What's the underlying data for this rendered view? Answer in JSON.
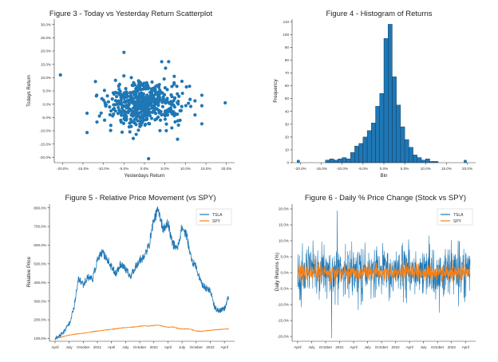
{
  "colors": {
    "primary": "#1f77b4",
    "secondary": "#ff7f0e",
    "bar_edge": "#0b2f4f"
  },
  "chart_data": [
    {
      "type": "scatter",
      "title": "Figure 3 - Today vs Yesterday Return Scatterplot",
      "xlabel": "Yesterdays Return",
      "ylabel": "Todays Return",
      "xlim": [
        -0.22,
        0.22
      ],
      "ylim": [
        -0.22,
        0.32
      ],
      "x_ticks": [
        "-20.0%",
        "-15.0%",
        "-10.0%",
        "-5.0%",
        "0.0%",
        "5.0%",
        "10.0%",
        "15.0%",
        "20.0%"
      ],
      "x_tick_values": [
        -0.2,
        -0.15,
        -0.1,
        -0.05,
        0,
        0.05,
        0.1,
        0.15,
        0.2
      ],
      "y_ticks": [
        "-20.0%",
        "-15.0%",
        "-10.0%",
        "-5.0%",
        "0.0%",
        "5.0%",
        "10.0%",
        "15.0%",
        "20.0%",
        "25.0%",
        "30.0%"
      ],
      "y_tick_values": [
        -0.2,
        -0.15,
        -0.1,
        -0.05,
        0,
        0.05,
        0.1,
        0.15,
        0.2,
        0.25,
        0.3
      ],
      "outliers": [
        {
          "x": -0.205,
          "y": 0.11
        },
        {
          "x": -0.05,
          "y": 0.195
        },
        {
          "x": 0.197,
          "y": 0.005
        },
        {
          "x": 0.01,
          "y": -0.205
        }
      ],
      "cluster": {
        "count": 560,
        "x_spread": 0.04,
        "y_spread": 0.04
      }
    },
    {
      "type": "bar",
      "title": "Figure 4 - Histogram of Returns",
      "xlabel": "Bin",
      "ylabel": "Frequency",
      "xlim": [
        -0.22,
        0.22
      ],
      "ylim": [
        0,
        112
      ],
      "x_ticks": [
        "-20.0%",
        "-15.0%",
        "-10.0%",
        "-5.0%",
        "0.0%",
        "5.0%",
        "10.0%",
        "15.0%",
        "20.0%"
      ],
      "x_tick_values": [
        -0.2,
        -0.15,
        -0.1,
        -0.05,
        0,
        0.05,
        0.1,
        0.15,
        0.2
      ],
      "y_ticks": [
        "0",
        "10",
        "20",
        "30",
        "40",
        "50",
        "60",
        "70",
        "80",
        "90",
        "100",
        "110"
      ],
      "y_tick_values": [
        0,
        10,
        20,
        30,
        40,
        50,
        60,
        70,
        80,
        90,
        100,
        110
      ],
      "bin_width": 0.01,
      "bin_starts": [
        -0.14,
        -0.13,
        -0.12,
        -0.11,
        -0.1,
        -0.09,
        -0.08,
        -0.07,
        -0.06,
        -0.05,
        -0.04,
        -0.03,
        -0.02,
        -0.01,
        0.0,
        0.01,
        0.02,
        0.03,
        0.04,
        0.05,
        0.06,
        0.07,
        0.08,
        0.09,
        0.1,
        0.11,
        0.12
      ],
      "frequencies": [
        2,
        3,
        2,
        3,
        4,
        3,
        8,
        13,
        15,
        20,
        25,
        31,
        44,
        54,
        97,
        108,
        67,
        45,
        28,
        18,
        12,
        6,
        4,
        2,
        3,
        1,
        1
      ],
      "outlier_points": [
        {
          "x": -0.205,
          "y": 1
        },
        {
          "x": 0.195,
          "y": 1
        }
      ]
    },
    {
      "type": "line",
      "title": "Figure 5 - Relative Price Movement (vs SPY)",
      "ylabel": "Relative Price",
      "xlabel": "",
      "ylim": [
        85,
        820
      ],
      "x_ticks": [
        "April",
        "July",
        "October",
        "2021",
        "April",
        "July",
        "October",
        "2022",
        "April",
        "July",
        "October",
        "2023",
        "April"
      ],
      "y_ticks": [
        "100.0%",
        "200.0%",
        "300.0%",
        "400.0%",
        "500.0%",
        "600.0%",
        "700.0%",
        "800.0%"
      ],
      "y_tick_values": [
        100,
        200,
        300,
        400,
        500,
        600,
        700,
        800
      ],
      "legend": [
        "TSLA",
        "SPY"
      ],
      "legend_position": "top-right",
      "series": [
        {
          "name": "TSLA",
          "months": [
            0,
            1,
            2,
            3,
            4,
            5,
            6,
            7,
            8,
            9,
            10,
            11,
            12,
            13,
            14,
            15,
            16,
            17,
            18,
            19,
            20,
            21,
            22,
            23,
            24,
            25,
            26,
            27,
            28,
            29,
            30,
            31,
            32,
            33,
            34,
            35,
            36,
            37
          ],
          "values": [
            100,
            115,
            140,
            180,
            260,
            420,
            390,
            430,
            420,
            520,
            560,
            530,
            480,
            450,
            500,
            470,
            430,
            480,
            520,
            540,
            600,
            740,
            790,
            680,
            720,
            610,
            580,
            700,
            650,
            520,
            480,
            400,
            370,
            360,
            260,
            250,
            260,
            330
          ]
        },
        {
          "name": "SPY",
          "months": [
            0,
            1,
            2,
            3,
            4,
            5,
            6,
            7,
            8,
            9,
            10,
            11,
            12,
            13,
            14,
            15,
            16,
            17,
            18,
            19,
            20,
            21,
            22,
            23,
            24,
            25,
            26,
            27,
            28,
            29,
            30,
            31,
            32,
            33,
            34,
            35,
            36,
            37
          ],
          "values": [
            100,
            105,
            112,
            118,
            122,
            125,
            128,
            132,
            136,
            140,
            143,
            146,
            149,
            152,
            156,
            158,
            160,
            162,
            165,
            168,
            166,
            170,
            172,
            165,
            160,
            162,
            155,
            150,
            152,
            148,
            140,
            138,
            141,
            144,
            146,
            148,
            150,
            152
          ]
        }
      ]
    },
    {
      "type": "line",
      "title": "Figure 6 - Daily % Price Change (Stock vs SPY)",
      "ylabel": "Daily Returns (%)",
      "xlabel": "",
      "ylim": [
        -0.215,
        0.215
      ],
      "x_ticks": [
        "April",
        "July",
        "October",
        "2021",
        "April",
        "July",
        "October",
        "2022",
        "April",
        "July",
        "October",
        "2023",
        "April"
      ],
      "y_ticks": [
        "-20.0%",
        "-15.0%",
        "-10.0%",
        "-5.0%",
        "0.0%",
        "5.0%",
        "10.0%",
        "15.0%",
        "20.0%"
      ],
      "y_tick_values": [
        -0.2,
        -0.15,
        -0.1,
        -0.05,
        0,
        0.05,
        0.1,
        0.15,
        0.2
      ],
      "legend": [
        "TSLA",
        "SPY"
      ],
      "legend_position": "top-right",
      "series": [
        {
          "name": "TSLA",
          "daily_std": 0.04,
          "spikes": [
            {
              "month": 7.3,
              "value": -0.205
            },
            {
              "month": 8.5,
              "value": 0.195
            }
          ]
        },
        {
          "name": "SPY",
          "daily_std": 0.013
        }
      ]
    }
  ]
}
